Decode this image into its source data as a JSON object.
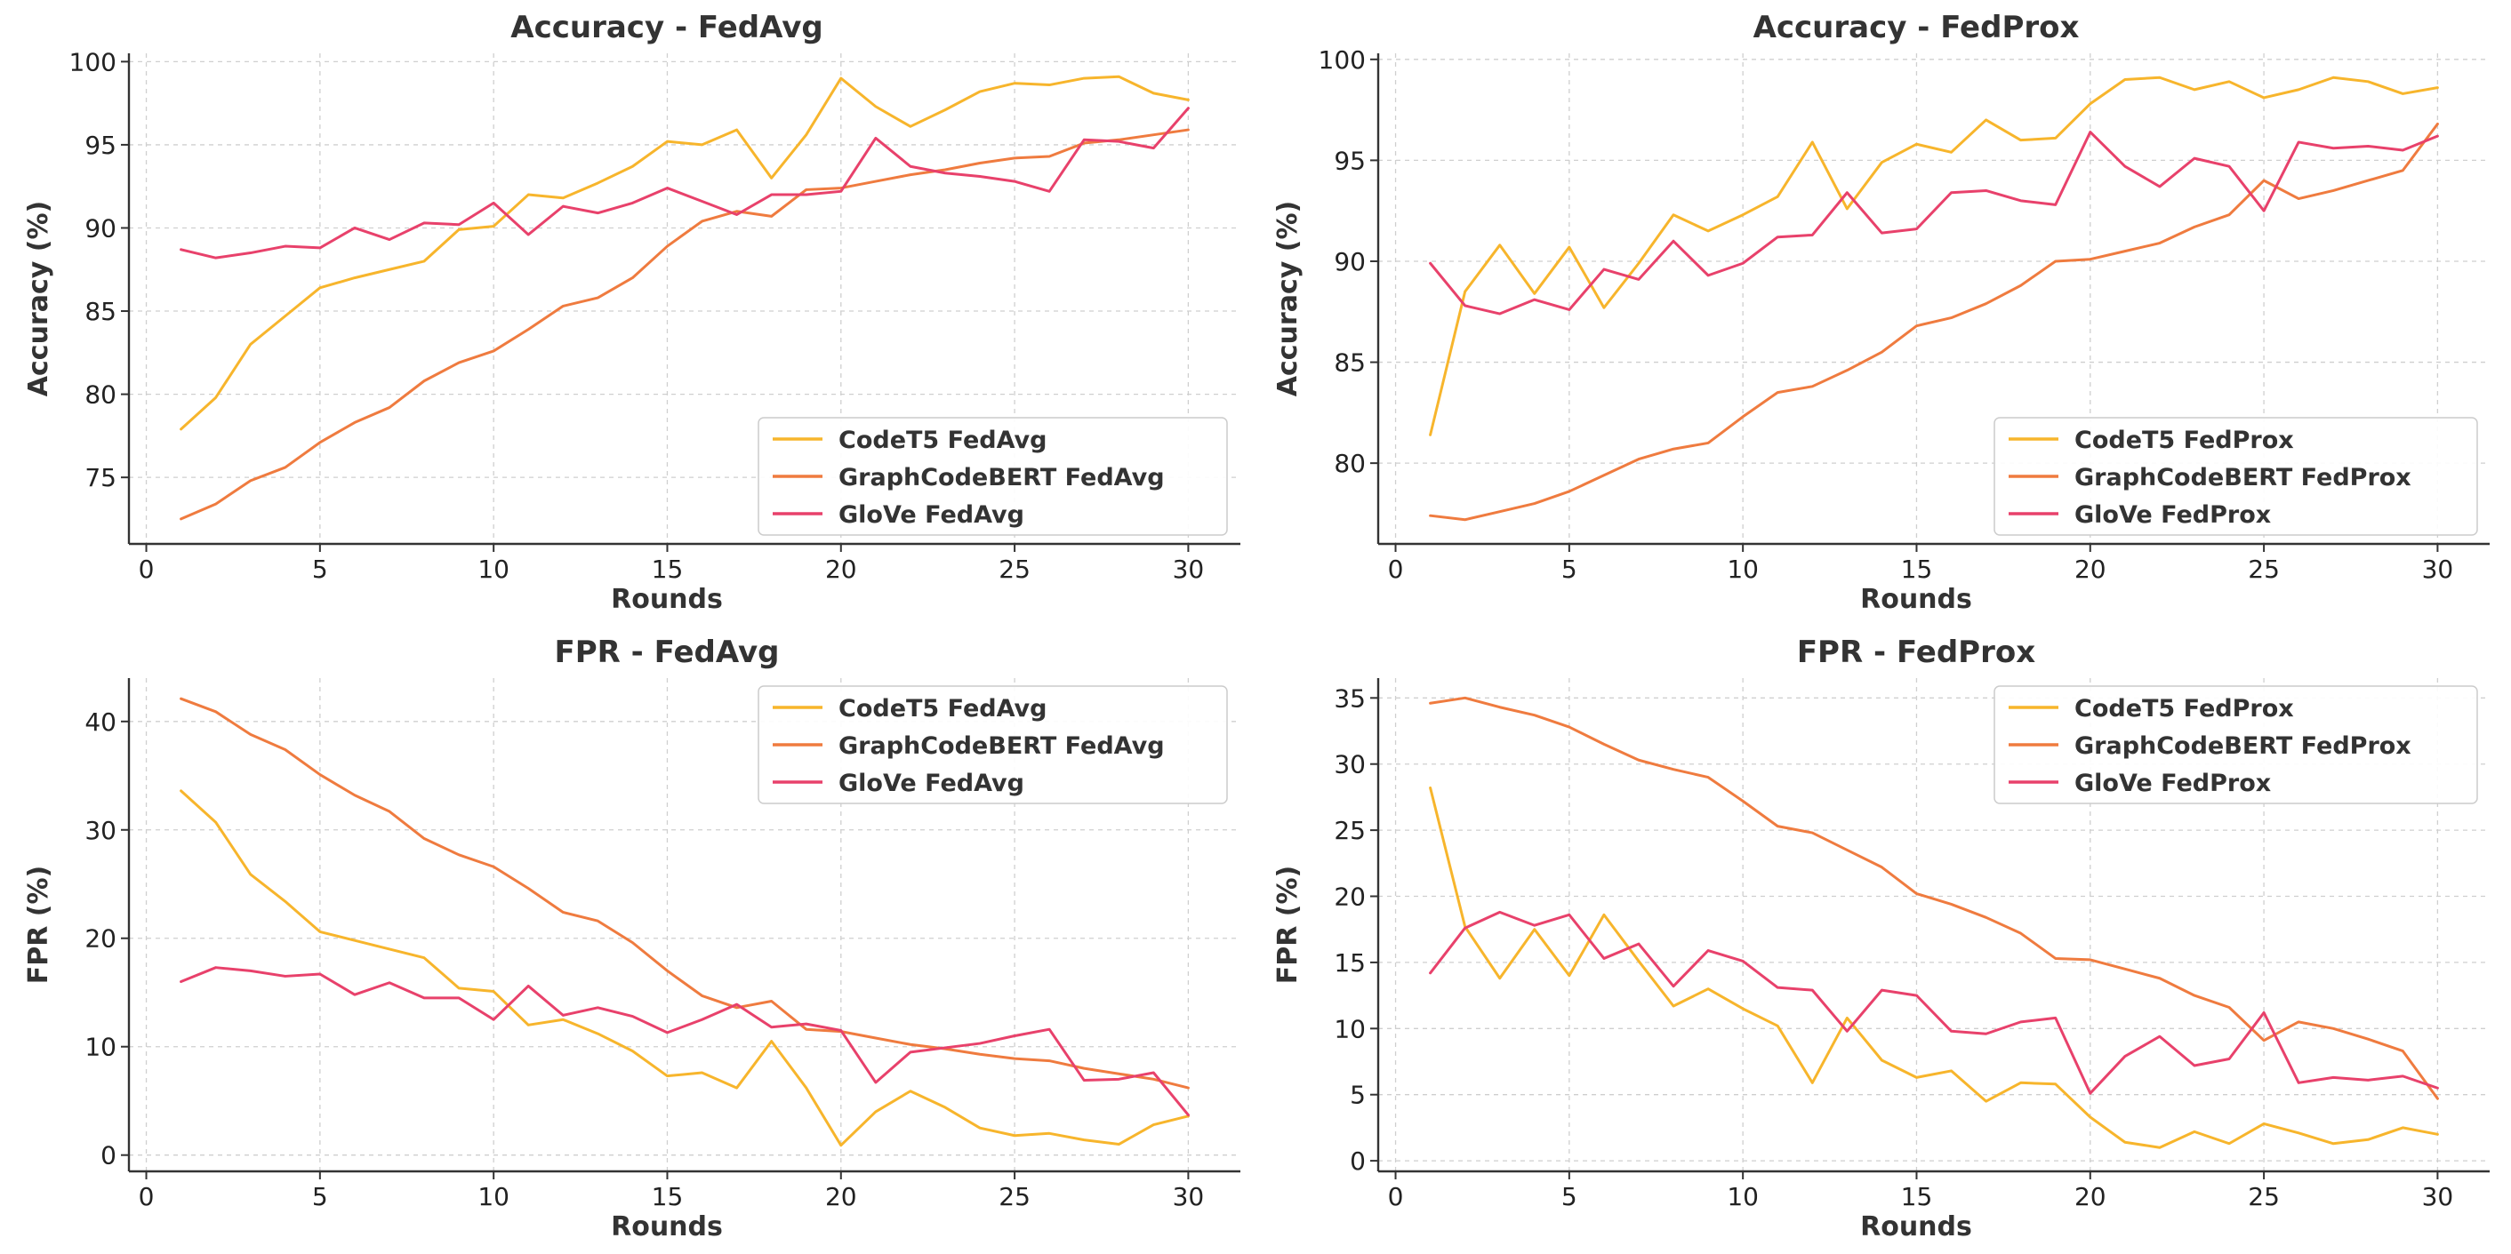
{
  "colors": {
    "codet5": "#f7b52c",
    "graphcodebert": "#ef7b3f",
    "glove": "#e8416b"
  },
  "chart_data": [
    {
      "type": "line",
      "title": "Accuracy - FedAvg",
      "xlabel": "Rounds",
      "ylabel": "Accuracy (%)",
      "xlim": [
        -0.5,
        31.5
      ],
      "ylim": [
        71,
        100.5
      ],
      "xticks": [
        0,
        5,
        10,
        15,
        20,
        25,
        30
      ],
      "yticks": [
        75,
        80,
        85,
        90,
        95,
        100
      ],
      "legend_position": "lower-right",
      "x": [
        1,
        2,
        3,
        4,
        5,
        6,
        7,
        8,
        9,
        10,
        11,
        12,
        13,
        14,
        15,
        16,
        17,
        18,
        19,
        20,
        21,
        22,
        23,
        24,
        25,
        26,
        27,
        28,
        29,
        30
      ],
      "series": [
        {
          "name": "CodeT5 FedAvg",
          "color_key": "codet5",
          "values": [
            77.9,
            79.8,
            83.0,
            84.7,
            86.4,
            87.0,
            87.5,
            88.0,
            89.9,
            90.1,
            92.0,
            91.8,
            92.7,
            93.7,
            95.2,
            95.0,
            95.9,
            93.0,
            95.6,
            99.0,
            97.3,
            96.1,
            97.1,
            98.2,
            98.7,
            98.6,
            99.0,
            99.1,
            98.1,
            97.7
          ]
        },
        {
          "name": "GraphCodeBERT FedAvg",
          "color_key": "graphcodebert",
          "values": [
            72.5,
            73.4,
            74.8,
            75.6,
            77.1,
            78.3,
            79.2,
            80.8,
            81.9,
            82.6,
            83.9,
            85.3,
            85.8,
            87.0,
            88.9,
            90.4,
            91.0,
            90.7,
            92.3,
            92.4,
            92.8,
            93.2,
            93.5,
            93.9,
            94.2,
            94.3,
            95.1,
            95.3,
            95.6,
            95.9
          ]
        },
        {
          "name": "GloVe FedAvg",
          "color_key": "glove",
          "values": [
            88.7,
            88.2,
            88.5,
            88.9,
            88.8,
            90.0,
            89.3,
            90.3,
            90.2,
            91.5,
            89.6,
            91.3,
            90.9,
            91.5,
            92.4,
            91.6,
            90.8,
            92.0,
            92.0,
            92.2,
            95.4,
            93.7,
            93.3,
            93.1,
            92.8,
            92.2,
            95.3,
            95.2,
            94.8,
            97.2
          ]
        }
      ]
    },
    {
      "type": "line",
      "title": "Accuracy - FedProx",
      "xlabel": "Rounds",
      "ylabel": "Accuracy (%)",
      "xlim": [
        -0.5,
        31.5
      ],
      "ylim": [
        76,
        100.3
      ],
      "xticks": [
        0,
        5,
        10,
        15,
        20,
        25,
        30
      ],
      "yticks": [
        80,
        85,
        90,
        95,
        100
      ],
      "legend_position": "lower-right",
      "x": [
        1,
        2,
        3,
        4,
        5,
        6,
        7,
        8,
        9,
        10,
        11,
        12,
        13,
        14,
        15,
        16,
        17,
        18,
        19,
        20,
        21,
        22,
        23,
        24,
        25,
        26,
        27,
        28,
        29,
        30
      ],
      "series": [
        {
          "name": "CodeT5 FedProx",
          "color_key": "codet5",
          "values": [
            81.4,
            88.5,
            90.8,
            88.4,
            90.7,
            87.7,
            89.9,
            92.3,
            91.5,
            92.3,
            93.2,
            95.9,
            92.6,
            94.9,
            95.8,
            95.4,
            97.0,
            96.0,
            96.1,
            97.8,
            99.0,
            99.1,
            98.5,
            98.9,
            98.1,
            98.5,
            99.1,
            98.9,
            98.3,
            98.6
          ]
        },
        {
          "name": "GraphCodeBERT FedProx",
          "color_key": "graphcodebert",
          "values": [
            77.4,
            77.2,
            77.6,
            78.0,
            78.6,
            79.4,
            80.2,
            80.7,
            81.0,
            82.3,
            83.5,
            83.8,
            84.6,
            85.5,
            86.8,
            87.2,
            87.9,
            88.8,
            90.0,
            90.1,
            90.5,
            90.9,
            91.7,
            92.3,
            94.0,
            93.1,
            93.5,
            94.0,
            94.5,
            96.8
          ]
        },
        {
          "name": "GloVe FedProx",
          "color_key": "glove",
          "values": [
            89.9,
            87.8,
            87.4,
            88.1,
            87.6,
            89.6,
            89.1,
            91.0,
            89.3,
            89.9,
            91.2,
            91.3,
            93.4,
            91.4,
            91.6,
            93.4,
            93.5,
            93.0,
            92.8,
            96.4,
            94.7,
            93.7,
            95.1,
            94.7,
            92.5,
            95.9,
            95.6,
            95.7,
            95.5,
            96.2
          ]
        }
      ]
    },
    {
      "type": "line",
      "title": "FPR - FedAvg",
      "xlabel": "Rounds",
      "ylabel": "FPR (%)",
      "xlim": [
        -0.5,
        31.5
      ],
      "ylim": [
        -1.5,
        44
      ],
      "xticks": [
        0,
        5,
        10,
        15,
        20,
        25,
        30
      ],
      "yticks": [
        0,
        10,
        20,
        30,
        40
      ],
      "legend_position": "upper-right",
      "x": [
        1,
        2,
        3,
        4,
        5,
        6,
        7,
        8,
        9,
        10,
        11,
        12,
        13,
        14,
        15,
        16,
        17,
        18,
        19,
        20,
        21,
        22,
        23,
        24,
        25,
        26,
        27,
        28,
        29,
        30
      ],
      "series": [
        {
          "name": "CodeT5 FedAvg",
          "color_key": "codet5",
          "values": [
            33.6,
            30.7,
            25.9,
            23.4,
            20.6,
            19.8,
            19.0,
            18.2,
            15.4,
            15.1,
            12.0,
            12.5,
            11.2,
            9.6,
            7.3,
            7.6,
            6.2,
            10.5,
            6.2,
            0.9,
            4.0,
            5.9,
            4.4,
            2.5,
            1.8,
            2.0,
            1.4,
            1.0,
            2.8,
            3.6
          ]
        },
        {
          "name": "GraphCodeBERT FedAvg",
          "color_key": "graphcodebert",
          "values": [
            42.1,
            40.9,
            38.8,
            37.4,
            35.1,
            33.2,
            31.7,
            29.2,
            27.7,
            26.6,
            24.6,
            22.4,
            21.6,
            19.6,
            17.0,
            14.7,
            13.6,
            14.2,
            11.6,
            11.4,
            10.8,
            10.2,
            9.8,
            9.3,
            8.9,
            8.7,
            8.0,
            7.5,
            7.0,
            6.2
          ]
        },
        {
          "name": "GloVe FedAvg",
          "color_key": "glove",
          "values": [
            16.0,
            17.3,
            17.0,
            16.5,
            16.7,
            14.8,
            15.9,
            14.5,
            14.5,
            12.5,
            15.6,
            12.9,
            13.6,
            12.8,
            11.3,
            12.5,
            13.9,
            11.8,
            12.1,
            11.5,
            6.7,
            9.5,
            9.9,
            10.3,
            11.0,
            11.6,
            6.9,
            7.0,
            7.6,
            3.7
          ]
        }
      ]
    },
    {
      "type": "line",
      "title": "FPR - FedProx",
      "xlabel": "Rounds",
      "ylabel": "FPR (%)",
      "xlim": [
        -0.5,
        31.5
      ],
      "ylim": [
        -0.8,
        36.5
      ],
      "xticks": [
        0,
        5,
        10,
        15,
        20,
        25,
        30
      ],
      "yticks": [
        0,
        5,
        10,
        15,
        20,
        25,
        30,
        35
      ],
      "legend_position": "upper-right",
      "x": [
        1,
        2,
        3,
        4,
        5,
        6,
        7,
        8,
        9,
        10,
        11,
        12,
        13,
        14,
        15,
        16,
        17,
        18,
        19,
        20,
        21,
        22,
        23,
        24,
        25,
        26,
        27,
        28,
        29,
        30
      ],
      "series": [
        {
          "name": "CodeT5 FedProx",
          "color_key": "codet5",
          "values": [
            28.2,
            17.7,
            13.8,
            17.5,
            14.0,
            18.6,
            15.1,
            11.7,
            13.0,
            11.5,
            10.2,
            5.9,
            10.8,
            7.6,
            6.3,
            6.8,
            4.5,
            5.9,
            5.8,
            3.3,
            1.4,
            1.0,
            2.2,
            1.3,
            2.8,
            2.1,
            1.3,
            1.6,
            2.5,
            2.0
          ]
        },
        {
          "name": "GraphCodeBERT FedProx",
          "color_key": "graphcodebert",
          "values": [
            34.6,
            35.0,
            34.3,
            33.7,
            32.8,
            31.5,
            30.3,
            29.6,
            29.0,
            27.2,
            25.3,
            24.8,
            23.5,
            22.2,
            20.2,
            19.4,
            18.4,
            17.2,
            15.3,
            15.2,
            14.5,
            13.8,
            12.5,
            11.6,
            9.1,
            10.5,
            10.0,
            9.2,
            8.3,
            4.7
          ]
        },
        {
          "name": "GloVe FedProx",
          "color_key": "glove",
          "values": [
            14.2,
            17.6,
            18.8,
            17.8,
            18.6,
            15.3,
            16.4,
            13.2,
            15.9,
            15.1,
            13.1,
            12.9,
            9.8,
            12.9,
            12.5,
            9.8,
            9.6,
            10.5,
            10.8,
            5.1,
            7.9,
            9.4,
            7.2,
            7.7,
            11.2,
            5.9,
            6.3,
            6.1,
            6.4,
            5.5
          ]
        }
      ]
    }
  ]
}
